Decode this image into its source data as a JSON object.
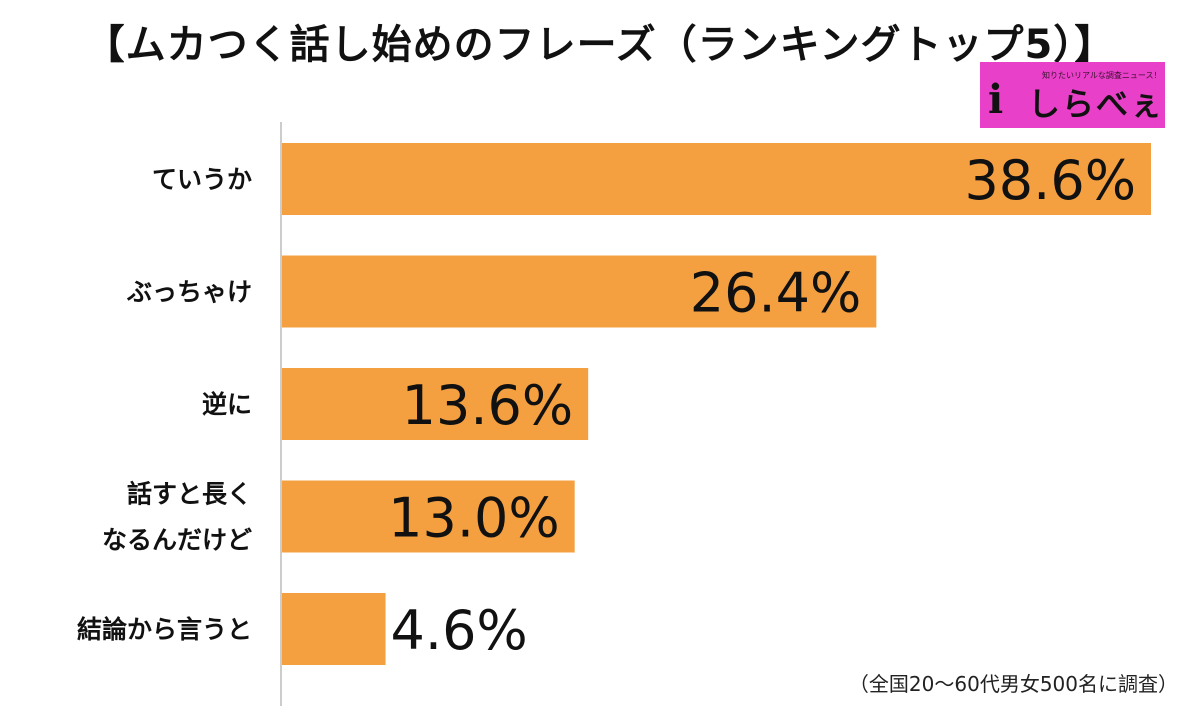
{
  "title": "【ムカつく話し始めのフレーズ（ランキングトップ5）】",
  "logo": {
    "tagline": "知りたいリアルな調査ニュース！",
    "mark": "i",
    "text": "しらべぇ"
  },
  "note": "（全国20〜60代男女500名に調査）",
  "chart_data": {
    "type": "bar",
    "orientation": "horizontal",
    "categories": [
      [
        "ていうか"
      ],
      [
        "ぶっちゃけ"
      ],
      [
        "逆に"
      ],
      [
        "話すと長く",
        "なるんだけど"
      ],
      [
        "結論から言うと"
      ]
    ],
    "values": [
      38.6,
      26.4,
      13.6,
      13.0,
      4.6
    ],
    "value_labels": [
      "38.6%",
      "26.4%",
      "13.6%",
      "13.0%",
      "4.6%"
    ],
    "unit": "%",
    "bar_color": "#f5a040",
    "axis_color": "#cccccc",
    "grid": false,
    "legend": "none"
  }
}
